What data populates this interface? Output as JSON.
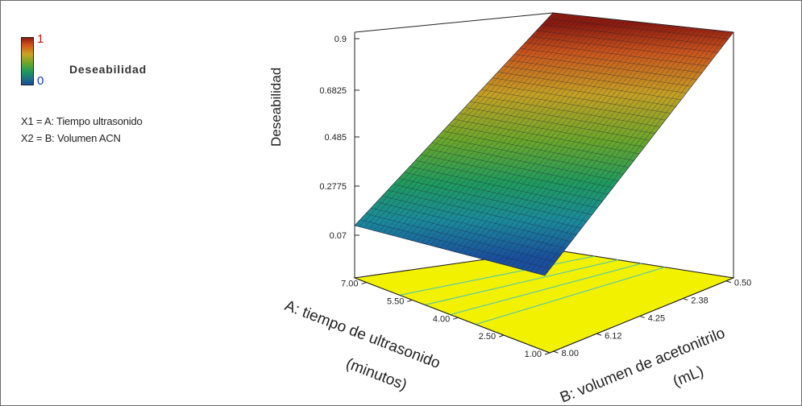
{
  "legend": {
    "max_label": "1",
    "min_label": "0",
    "title": "Deseabilidad",
    "factors": [
      "X1 = A: Tiempo ultrasonido",
      "X2 = B: Volumen ACN"
    ]
  },
  "chart_data": {
    "type": "surface",
    "title": "",
    "zlabel": "Deseabilidad",
    "xlabel_line1": "A: tiempo de ultrasonido",
    "xlabel_line2": "(minutos)",
    "ylabel_line1": "B: volumen de acetonitrilo",
    "ylabel_line2": "(mL)",
    "z_ticks": [
      "0.9",
      "0.6825",
      "0.485",
      "0.2775",
      "0.07"
    ],
    "a_ticks": [
      "7.00",
      "5.50",
      "4.00",
      "2.50",
      "1.00"
    ],
    "b_ticks": [
      "0.50",
      "2.38",
      "4.25",
      "6.12",
      "8.00"
    ],
    "zlim": [
      0.07,
      0.9
    ],
    "a_range": [
      1.0,
      7.0
    ],
    "b_range": [
      0.5,
      8.0
    ],
    "surface_corners": [
      {
        "a": 7.0,
        "b": 0.5,
        "z": 0.9
      },
      {
        "a": 1.0,
        "b": 0.5,
        "z": 0.9
      },
      {
        "a": 1.0,
        "b": 8.0,
        "z": 0.07
      },
      {
        "a": 7.0,
        "b": 8.0,
        "z": 0.07
      }
    ],
    "colors": {
      "high": "#8b1a0f",
      "mid": "#6aa62a",
      "low": "#1b4f9c",
      "floor": "#f2f200"
    }
  }
}
